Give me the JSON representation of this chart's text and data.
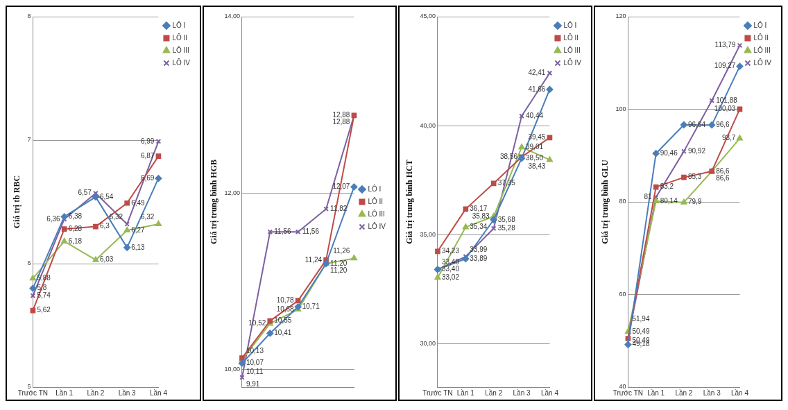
{
  "chart_data": [
    {
      "type": "line",
      "ylabel": "Giá trị tb RBC",
      "categories": [
        "Trước TN",
        "Lần 1",
        "Lần 2",
        "Lần 3",
        "Lần 4"
      ],
      "ylim": [
        5,
        8
      ],
      "yticks": [
        5,
        6,
        7,
        8
      ],
      "grid": "y",
      "legend": "top right",
      "series": [
        {
          "name": "LÔ I",
          "color": "#4a7ebb",
          "marker": "diamond",
          "values": [
            5.8,
            6.38,
            6.54,
            6.13,
            6.69
          ],
          "value_labels": [
            "5,8",
            "6,38",
            "6,54",
            "6,13",
            "6,69"
          ]
        },
        {
          "name": "LÔ II",
          "color": "#be4b48",
          "marker": "square",
          "values": [
            5.62,
            6.28,
            6.3,
            6.49,
            6.87
          ],
          "value_labels": [
            "5,62",
            "6,28",
            "6,3",
            "6,49",
            "6,87"
          ]
        },
        {
          "name": "LÔ III",
          "color": "#98b954",
          "marker": "triangle",
          "values": [
            5.88,
            6.18,
            6.03,
            6.27,
            6.32
          ],
          "value_labels": [
            "5,88",
            "6,18",
            "6,03",
            "6,27",
            "6,32"
          ]
        },
        {
          "name": "LÔ IV",
          "color": "#7d60a0",
          "marker": "cross",
          "values": [
            5.74,
            6.36,
            6.57,
            6.32,
            6.99
          ],
          "value_labels": [
            "5,74",
            "6,36",
            "6,57",
            "6,32",
            "6,99"
          ]
        }
      ]
    },
    {
      "type": "line",
      "ylabel": "Giá trị trung bình HGB",
      "categories": [
        null,
        null,
        null,
        null,
        null
      ],
      "ylim": [
        9.8,
        14
      ],
      "yticks": [
        {
          "value": 10,
          "label": "10,00"
        },
        {
          "value": 12,
          "label": "12,00"
        },
        {
          "value": 14,
          "label": "14,00"
        }
      ],
      "grid": "y",
      "legend": "right",
      "series": [
        {
          "name": "LÔ I",
          "color": "#4a7ebb",
          "marker": "diamond",
          "values": [
            10.07,
            10.41,
            10.71,
            11.2,
            12.07
          ],
          "value_labels": [
            "10,07",
            "10,41",
            "10,71",
            "11,20",
            "12,07"
          ]
        },
        {
          "name": "LÔ II",
          "color": "#be4b48",
          "marker": "square",
          "values": [
            10.13,
            10.55,
            10.78,
            11.24,
            12.88
          ],
          "value_labels": [
            "10,13",
            "10,55",
            "10,78",
            "11,24",
            "12,88"
          ]
        },
        {
          "name": "LÔ III",
          "color": "#98b954",
          "marker": "triangle",
          "values": [
            10.11,
            10.52,
            10.68,
            11.2,
            11.26
          ],
          "value_labels": [
            "10,11",
            "10,52",
            "10,68",
            "11,20",
            "11,26"
          ]
        },
        {
          "name": "LÔ IV",
          "color": "#7d60a0",
          "marker": "cross",
          "values": [
            9.91,
            11.56,
            11.56,
            11.82,
            12.88
          ],
          "value_labels": [
            "9,91",
            "11,56",
            "11,56",
            "11,82",
            "12,88"
          ]
        }
      ]
    },
    {
      "type": "line",
      "ylabel": "Giá trị trung bình HCT",
      "categories": [
        "Trước TN",
        "Lần 1",
        "Lần 2",
        "Lần 3",
        "Lần 4"
      ],
      "ylim": [
        28,
        45
      ],
      "yticks": [
        {
          "value": 30,
          "label": "30,00"
        },
        {
          "value": 35,
          "label": "35,00"
        },
        {
          "value": 40,
          "label": "40,00"
        },
        {
          "value": 45,
          "label": "45,00"
        }
      ],
      "grid": "y",
      "legend": "top right",
      "series": [
        {
          "name": "LÔ I",
          "color": "#4a7ebb",
          "marker": "diamond",
          "values": [
            33.4,
            33.89,
            35.68,
            38.5,
            41.66
          ],
          "value_labels": [
            "33,40",
            "33,89",
            "35,68",
            "38,50",
            "41,66"
          ]
        },
        {
          "name": "LÔ II",
          "color": "#be4b48",
          "marker": "square",
          "values": [
            34.23,
            36.17,
            37.35,
            38.56,
            39.45
          ],
          "value_labels": [
            "34,23",
            "36,17",
            "37,35",
            "38,56",
            "39,45"
          ]
        },
        {
          "name": "LÔ III",
          "color": "#98b954",
          "marker": "triangle",
          "values": [
            33.02,
            35.34,
            35.83,
            39.01,
            38.43
          ],
          "value_labels": [
            "33,02",
            "35,34",
            "35,83",
            "39,01",
            "38,43"
          ]
        },
        {
          "name": "LÔ IV",
          "color": "#7d60a0",
          "marker": "cross",
          "values": [
            33.4,
            33.99,
            35.28,
            40.44,
            42.41
          ],
          "value_labels": [
            "33,40",
            "33,99",
            "35,28",
            "40,44",
            "42,41"
          ]
        }
      ]
    },
    {
      "type": "line",
      "ylabel": "Giá trị trung bình GLU",
      "categories": [
        "Trước TN",
        "Lần 1",
        "Lần 2",
        "Lần 3",
        "Lần 4"
      ],
      "ylim": [
        40,
        120
      ],
      "yticks": [
        40,
        60,
        80,
        100,
        120
      ],
      "grid": "y",
      "legend": "top right",
      "series": [
        {
          "name": "LÔ I",
          "color": "#4a7ebb",
          "marker": "diamond",
          "values": [
            49.18,
            90.46,
            96.64,
            96.6,
            109.27
          ],
          "value_labels": [
            "49,18",
            "90,46",
            "96,64",
            "96,6",
            "109,27"
          ]
        },
        {
          "name": "LÔ II",
          "color": "#be4b48",
          "marker": "square",
          "values": [
            50.49,
            83.2,
            85.3,
            86.6,
            100.03
          ],
          "value_labels": [
            "50,49",
            "83,2",
            "85,3",
            "86,6",
            "100,03"
          ]
        },
        {
          "name": "LÔ III",
          "color": "#98b954",
          "marker": "triangle",
          "values": [
            51.94,
            80.14,
            79.9,
            86.6,
            93.7
          ],
          "value_labels": [
            "51,94",
            "80,14",
            "79,9",
            "86,6",
            "93,7"
          ]
        },
        {
          "name": "LÔ IV",
          "color": "#7d60a0",
          "marker": "cross",
          "values": [
            50.49,
            81,
            90.92,
            101.88,
            113.79
          ],
          "value_labels": [
            "50,49",
            "81",
            "90,92",
            "101,88",
            "113,79"
          ]
        }
      ]
    }
  ]
}
